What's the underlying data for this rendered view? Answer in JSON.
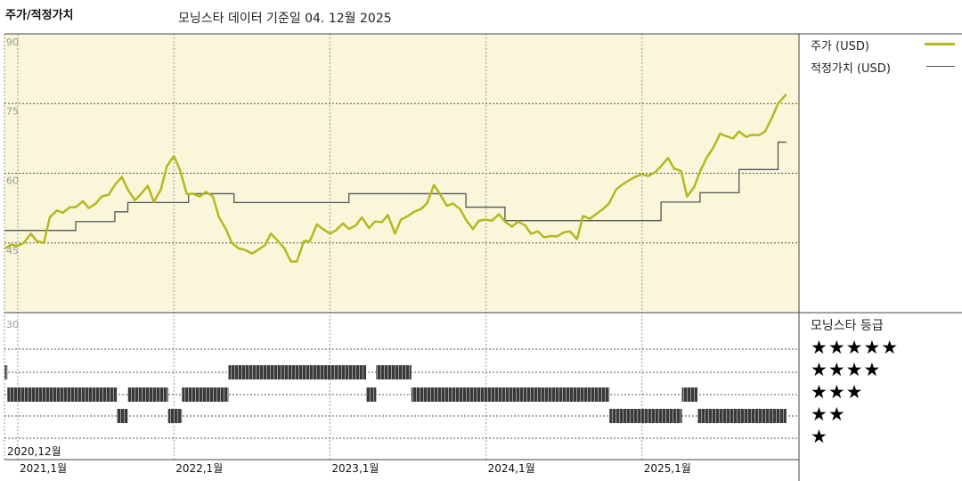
{
  "header": {
    "title": "주가/적정가치",
    "subtitle": "모닝스타 데이터 기준일 04. 12월 2025"
  },
  "legend": {
    "price_label": "주가 (USD)",
    "fair_value_label": "적정가치 (USD)",
    "rating_title": "모닝스타 등급",
    "rating_rows": [
      "★★★★★",
      "★★★★",
      "★★★",
      "★★",
      "★"
    ]
  },
  "colors": {
    "price": "#b5b81e",
    "fair_value": "#555555",
    "plot_bg": "#faf6da",
    "rating_bar": "#3a3a3a"
  },
  "chart_data": [
    {
      "type": "line",
      "ylim": [
        30,
        90
      ],
      "yticks": [
        "90",
        "75",
        "60",
        "45"
      ],
      "ytick_values": [
        90,
        75,
        60,
        45
      ],
      "grid": true,
      "legend_placement": "right",
      "xticks": [
        {
          "date": "2020-12-01",
          "label": "2020,12월"
        },
        {
          "date": "2021-01-01",
          "label": "2021,1월"
        },
        {
          "date": "2022-01-01",
          "label": "2022,1월"
        },
        {
          "date": "2023-01-01",
          "label": "2023,1월"
        },
        {
          "date": "2024-01-01",
          "label": "2024,1월"
        },
        {
          "date": "2025-01-01",
          "label": "2025,1월"
        }
      ],
      "series": [
        {
          "name": "주가 (USD)",
          "points": [
            [
              "2020-12-01",
              43.8
            ],
            [
              "2020-12-15",
              44.6
            ],
            [
              "2021-01-01",
              44.4
            ],
            [
              "2021-01-15",
              45.0
            ],
            [
              "2021-02-01",
              47.0
            ],
            [
              "2021-02-15",
              45.4
            ],
            [
              "2021-03-01",
              45.0
            ],
            [
              "2021-03-15",
              50.5
            ],
            [
              "2021-04-01",
              52.0
            ],
            [
              "2021-04-15",
              51.5
            ],
            [
              "2021-05-01",
              52.7
            ],
            [
              "2021-05-15",
              52.7
            ],
            [
              "2021-06-01",
              54.0
            ],
            [
              "2021-06-15",
              52.5
            ],
            [
              "2021-07-01",
              53.5
            ],
            [
              "2021-07-15",
              55.0
            ],
            [
              "2021-08-01",
              55.4
            ],
            [
              "2021-08-15",
              57.5
            ],
            [
              "2021-09-01",
              59.2
            ],
            [
              "2021-09-15",
              56.5
            ],
            [
              "2021-10-01",
              54.2
            ],
            [
              "2021-10-15",
              55.5
            ],
            [
              "2021-11-01",
              57.3
            ],
            [
              "2021-11-15",
              53.8
            ],
            [
              "2021-12-01",
              56.5
            ],
            [
              "2021-12-15",
              61.5
            ],
            [
              "2022-01-01",
              63.7
            ],
            [
              "2022-01-15",
              60.8
            ],
            [
              "2022-02-01",
              55.5
            ],
            [
              "2022-02-15",
              55.6
            ],
            [
              "2022-03-01",
              55.0
            ],
            [
              "2022-03-15",
              56.0
            ],
            [
              "2022-04-01",
              55.0
            ],
            [
              "2022-04-15",
              50.6
            ],
            [
              "2022-05-01",
              48.0
            ],
            [
              "2022-05-15",
              45.0
            ],
            [
              "2022-06-01",
              43.8
            ],
            [
              "2022-06-15",
              43.5
            ],
            [
              "2022-07-01",
              42.7
            ],
            [
              "2022-07-15",
              43.5
            ],
            [
              "2022-08-01",
              44.5
            ],
            [
              "2022-08-15",
              47.0
            ],
            [
              "2022-09-01",
              45.4
            ],
            [
              "2022-09-15",
              44.0
            ],
            [
              "2022-10-01",
              41.0
            ],
            [
              "2022-10-15",
              41.0
            ],
            [
              "2022-11-01",
              45.4
            ],
            [
              "2022-11-15",
              45.4
            ],
            [
              "2022-12-01",
              49.0
            ],
            [
              "2022-12-15",
              48.0
            ],
            [
              "2023-01-01",
              47.0
            ],
            [
              "2023-01-15",
              47.7
            ],
            [
              "2023-02-01",
              49.2
            ],
            [
              "2023-02-15",
              48.0
            ],
            [
              "2023-03-01",
              48.8
            ],
            [
              "2023-03-15",
              50.5
            ],
            [
              "2023-04-01",
              48.2
            ],
            [
              "2023-04-15",
              49.6
            ],
            [
              "2023-05-01",
              49.5
            ],
            [
              "2023-05-15",
              51.0
            ],
            [
              "2023-06-01",
              47.0
            ],
            [
              "2023-06-15",
              50.0
            ],
            [
              "2023-07-01",
              50.8
            ],
            [
              "2023-07-15",
              51.7
            ],
            [
              "2023-08-01",
              52.3
            ],
            [
              "2023-08-15",
              53.5
            ],
            [
              "2023-09-01",
              57.5
            ],
            [
              "2023-09-15",
              55.5
            ],
            [
              "2023-10-01",
              53.0
            ],
            [
              "2023-10-15",
              53.5
            ],
            [
              "2023-11-01",
              52.3
            ],
            [
              "2023-11-15",
              50.0
            ],
            [
              "2023-12-01",
              48.0
            ],
            [
              "2023-12-15",
              49.8
            ],
            [
              "2024-01-01",
              50.0
            ],
            [
              "2024-01-15",
              49.8
            ],
            [
              "2024-02-01",
              51.2
            ],
            [
              "2024-02-15",
              49.6
            ],
            [
              "2024-03-01",
              48.5
            ],
            [
              "2024-03-15",
              49.6
            ],
            [
              "2024-04-01",
              48.8
            ],
            [
              "2024-04-15",
              47.0
            ],
            [
              "2024-05-01",
              47.5
            ],
            [
              "2024-05-15",
              46.2
            ],
            [
              "2024-06-01",
              46.5
            ],
            [
              "2024-06-15",
              46.4
            ],
            [
              "2024-07-01",
              47.3
            ],
            [
              "2024-07-15",
              47.5
            ],
            [
              "2024-08-01",
              45.8
            ],
            [
              "2024-08-15",
              50.8
            ],
            [
              "2024-09-01",
              50.2
            ],
            [
              "2024-09-15",
              51.2
            ],
            [
              "2024-10-01",
              52.3
            ],
            [
              "2024-10-15",
              53.5
            ],
            [
              "2024-11-01",
              56.5
            ],
            [
              "2024-11-15",
              57.5
            ],
            [
              "2024-12-01",
              58.5
            ],
            [
              "2024-12-15",
              59.2
            ],
            [
              "2025-01-01",
              59.8
            ],
            [
              "2025-01-15",
              59.4
            ],
            [
              "2025-02-01",
              60.2
            ],
            [
              "2025-02-15",
              61.5
            ],
            [
              "2025-03-01",
              63.3
            ],
            [
              "2025-03-15",
              61.0
            ],
            [
              "2025-04-01",
              60.5
            ],
            [
              "2025-04-15",
              55.0
            ],
            [
              "2025-05-01",
              57.0
            ],
            [
              "2025-05-15",
              60.4
            ],
            [
              "2025-06-01",
              63.5
            ],
            [
              "2025-06-15",
              65.4
            ],
            [
              "2025-07-01",
              68.5
            ],
            [
              "2025-07-15",
              68.0
            ],
            [
              "2025-08-01",
              67.5
            ],
            [
              "2025-08-15",
              69.0
            ],
            [
              "2025-09-01",
              67.8
            ],
            [
              "2025-09-15",
              68.3
            ],
            [
              "2025-10-01",
              68.2
            ],
            [
              "2025-10-15",
              69.0
            ],
            [
              "2025-11-01",
              72.0
            ],
            [
              "2025-11-15",
              75.0
            ],
            [
              "2025-12-01",
              76.7
            ],
            [
              "2025-12-04",
              77.0
            ]
          ]
        },
        {
          "name": "적정가치 (USD)",
          "step": true,
          "points": [
            [
              "2020-12-01",
              47.7
            ],
            [
              "2021-05-15",
              49.6
            ],
            [
              "2021-08-15",
              51.7
            ],
            [
              "2021-09-15",
              53.7
            ],
            [
              "2022-02-05",
              55.6
            ],
            [
              "2022-05-20",
              53.7
            ],
            [
              "2023-02-15",
              55.6
            ],
            [
              "2023-11-15",
              52.7
            ],
            [
              "2024-02-15",
              49.8
            ],
            [
              "2025-02-15",
              53.8
            ],
            [
              "2025-05-15",
              55.8
            ],
            [
              "2025-08-15",
              60.8
            ],
            [
              "2025-11-15",
              66.7
            ],
            [
              "2025-12-04",
              66.7
            ]
          ]
        }
      ]
    },
    {
      "type": "bar",
      "title": "모닝스타 등급",
      "ytick": "30",
      "rating_segments": [
        {
          "start": "2020-12-01",
          "end": "2020-12-07",
          "stars": 4
        },
        {
          "start": "2020-12-07",
          "end": "2021-08-20",
          "stars": 3
        },
        {
          "start": "2021-08-20",
          "end": "2021-09-15",
          "stars": 2
        },
        {
          "start": "2021-09-15",
          "end": "2021-12-18",
          "stars": 3
        },
        {
          "start": "2021-12-18",
          "end": "2022-01-20",
          "stars": 2
        },
        {
          "start": "2022-01-20",
          "end": "2022-05-07",
          "stars": 3
        },
        {
          "start": "2022-05-07",
          "end": "2023-03-25",
          "stars": 4
        },
        {
          "start": "2023-03-25",
          "end": "2023-04-18",
          "stars": 3
        },
        {
          "start": "2023-04-18",
          "end": "2023-07-09",
          "stars": 4
        },
        {
          "start": "2023-07-09",
          "end": "2024-10-16",
          "stars": 3
        },
        {
          "start": "2024-10-16",
          "end": "2025-04-03",
          "stars": 2
        },
        {
          "start": "2025-04-03",
          "end": "2025-05-09",
          "stars": 3
        },
        {
          "start": "2025-05-09",
          "end": "2025-12-04",
          "stars": 2
        }
      ]
    }
  ]
}
